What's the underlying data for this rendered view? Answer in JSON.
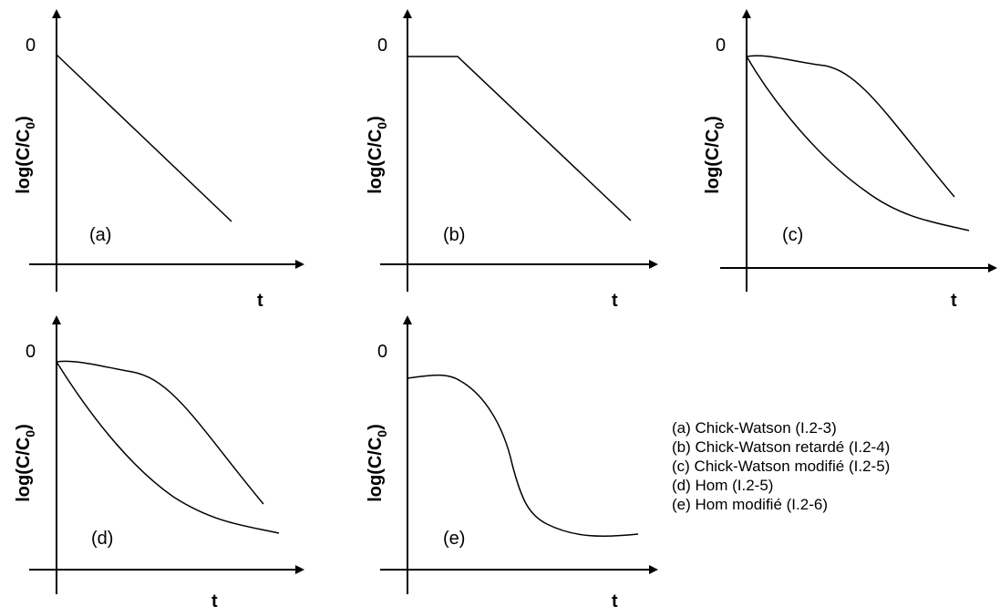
{
  "panels": [
    {
      "id": "a",
      "label": "(a)",
      "zero": "0",
      "ylabel": "log(C/C",
      "ysub": "0",
      "ytail": ")",
      "xlabel": "t",
      "model": "linear"
    },
    {
      "id": "b",
      "label": "(b)",
      "zero": "0",
      "ylabel": "log(C/C",
      "ysub": "0",
      "ytail": ")",
      "xlabel": "t",
      "model": "shoulder-linear"
    },
    {
      "id": "c",
      "label": "(c)",
      "zero": "0",
      "ylabel": "log(C/C",
      "ysub": "0",
      "ytail": ")",
      "xlabel": "t",
      "model": "two-curves"
    },
    {
      "id": "d",
      "label": "(d)",
      "zero": "0",
      "ylabel": "log(C/C",
      "ysub": "0",
      "ytail": ")",
      "xlabel": "t",
      "model": "two-curves"
    },
    {
      "id": "e",
      "label": "(e)",
      "zero": "0",
      "ylabel": "log(C/C",
      "ysub": "0",
      "ytail": ")",
      "xlabel": "t",
      "model": "sigmoid"
    }
  ],
  "legend": [
    "(a) Chick-Watson (I.2-3)",
    "(b) Chick-Watson retardé (I.2-4)",
    "(c) Chick-Watson modifié (I.2-5)",
    "(d) Hom (I.2-5)",
    "(e) Hom modifié (I.2-6)"
  ]
}
